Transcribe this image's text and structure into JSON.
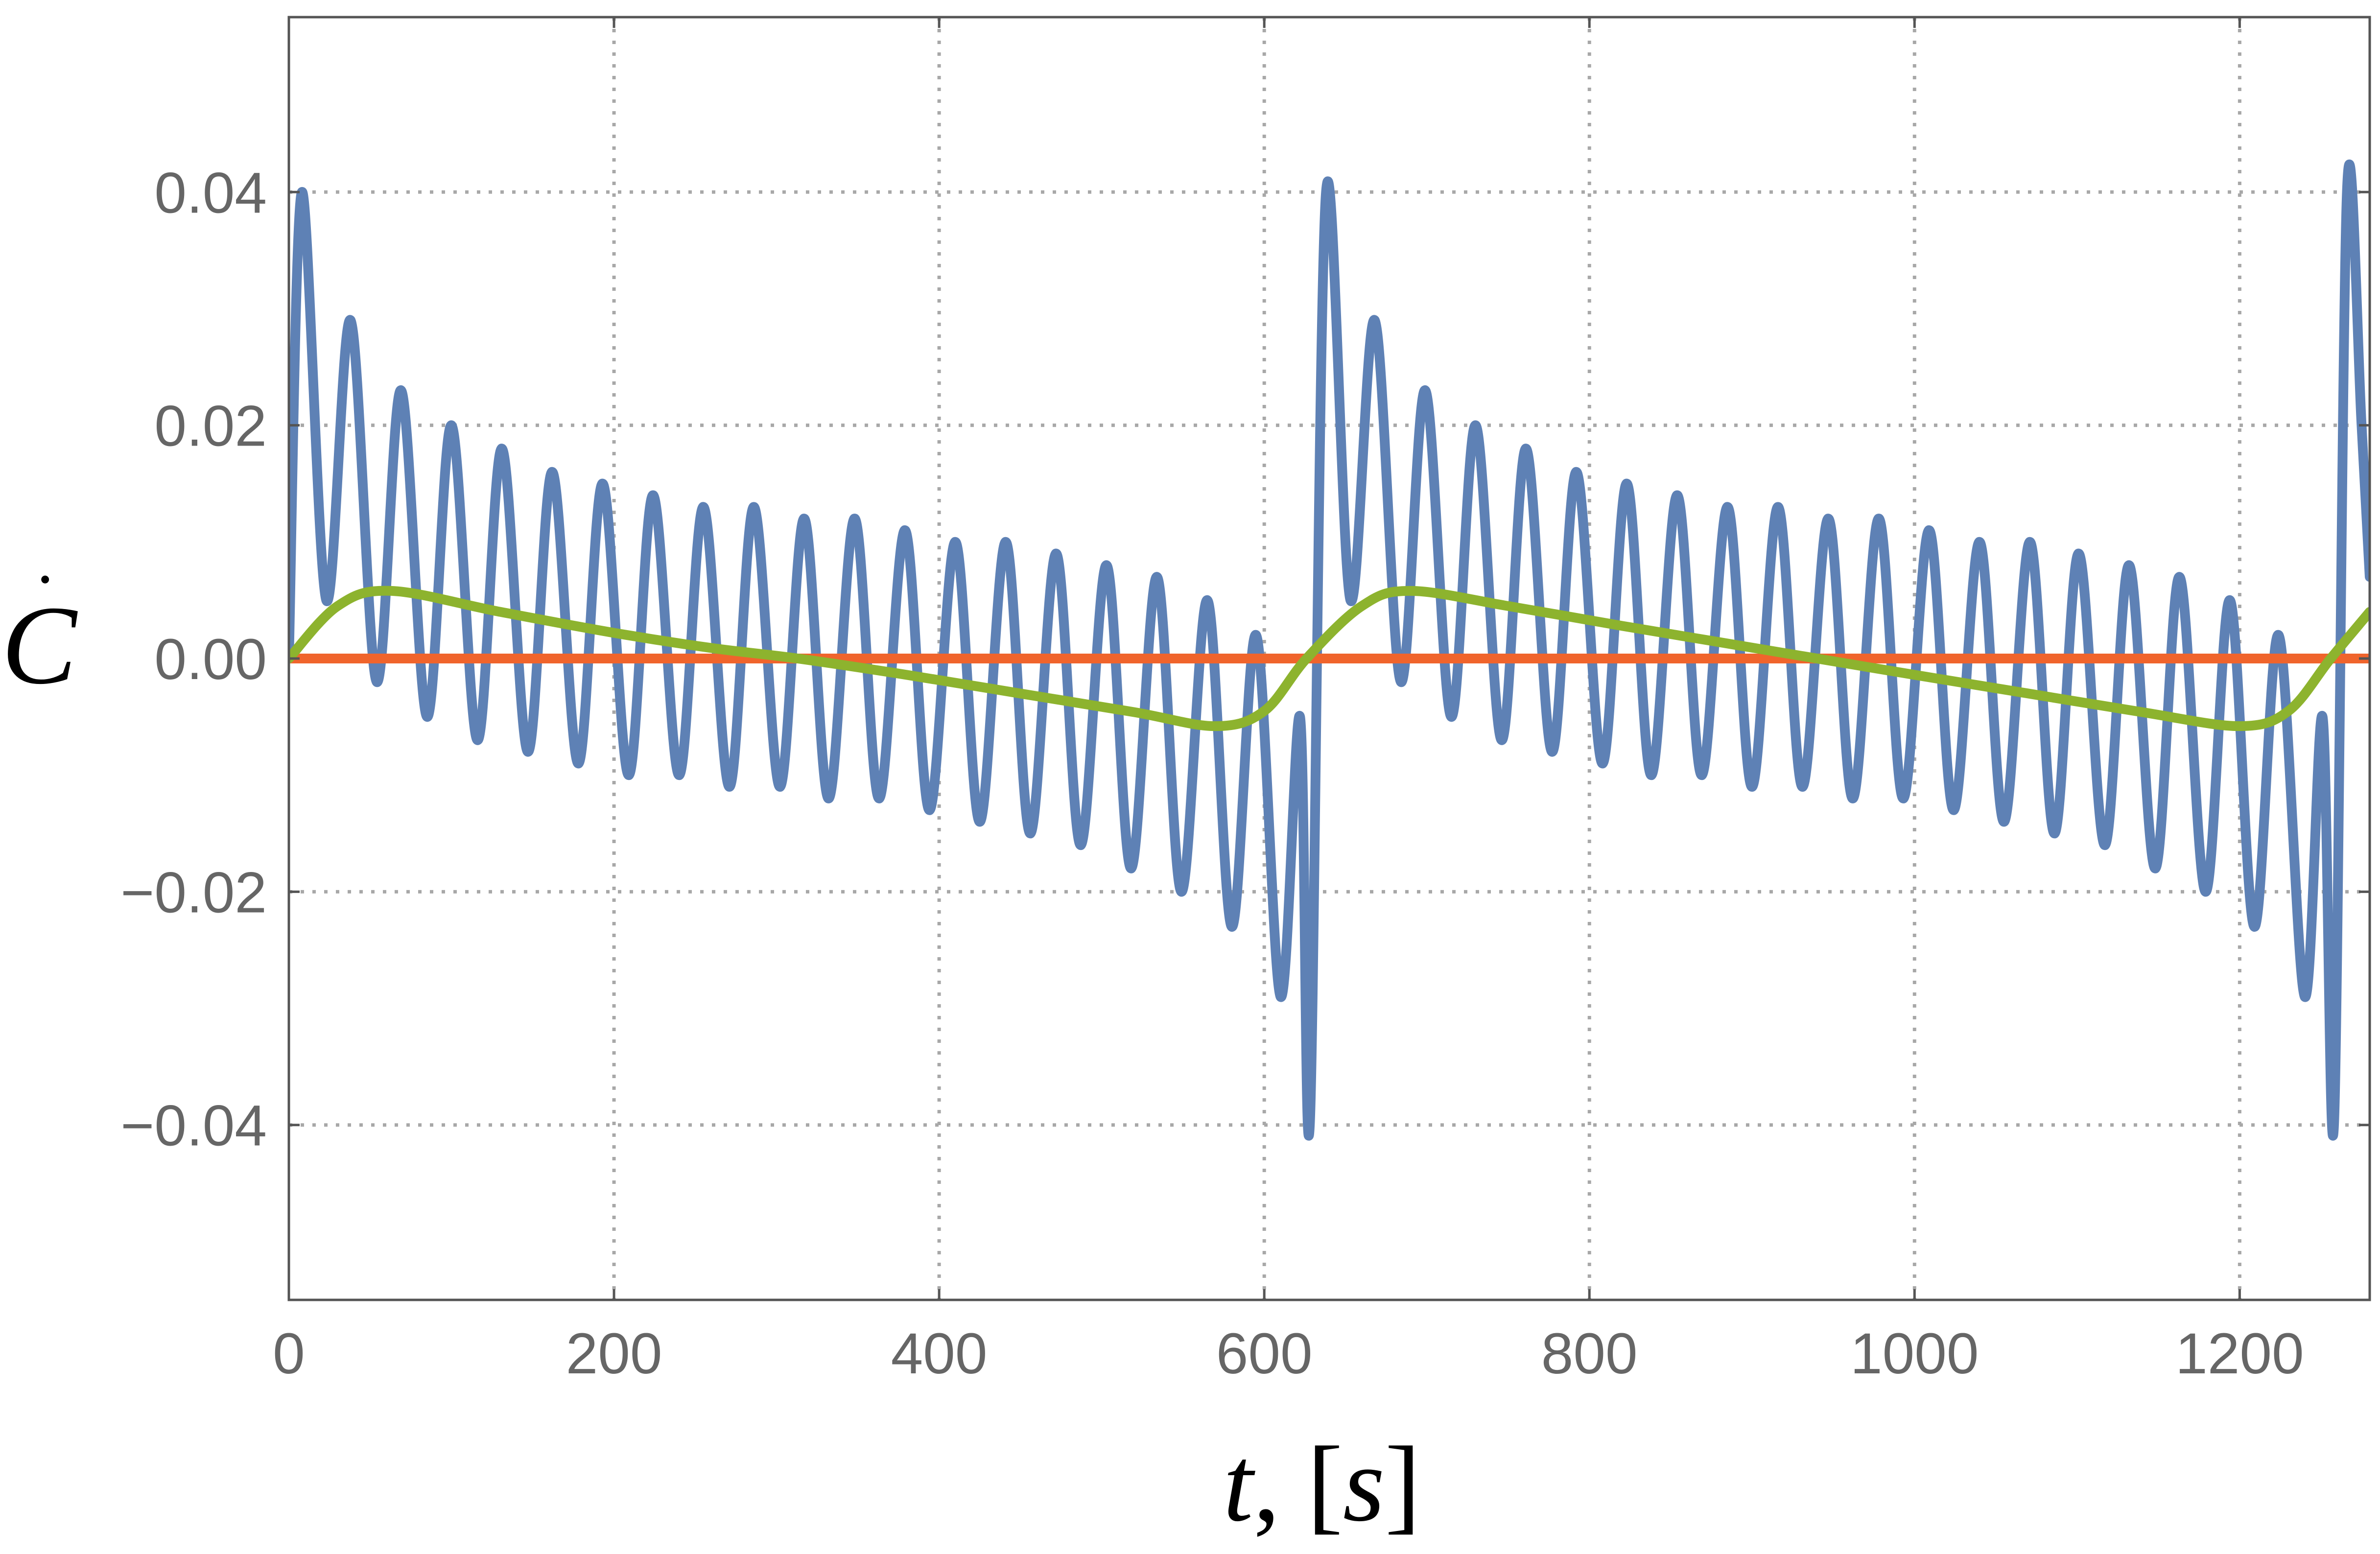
{
  "chart_data": {
    "type": "line",
    "title": "",
    "xlabel": {
      "var": "t",
      "sep": ", ",
      "open": "[",
      "unit": "s",
      "close": "]"
    },
    "ylabel": {
      "symbol": "C",
      "accent": "˙"
    },
    "xlim": [
      0,
      1280
    ],
    "ylim": [
      -0.055,
      0.055
    ],
    "x_ticks": [
      0,
      200,
      400,
      600,
      800,
      1000,
      1200
    ],
    "x_tick_labels": [
      "0",
      "200",
      "400",
      "600",
      "800",
      "1000",
      "1200"
    ],
    "y_ticks": [
      -0.04,
      -0.02,
      0.0,
      0.02,
      0.04
    ],
    "y_tick_labels": [
      "−0.04",
      "−0.02",
      "0.00",
      "0.02",
      "0.04"
    ],
    "grid": true,
    "legend": "none",
    "series": [
      {
        "color": "#5E81B5",
        "x": [
          0,
          8,
          23,
          38,
          54,
          69,
          85,
          100,
          116,
          131,
          147,
          162,
          178,
          193,
          209,
          224,
          240,
          255,
          271,
          286,
          302,
          317,
          332,
          348,
          363,
          379,
          394,
          410,
          425,
          441,
          456,
          472,
          487,
          503,
          518,
          534,
          549,
          565,
          580,
          595,
          610,
          622,
          628,
          638,
          653,
          668,
          684,
          699,
          715,
          730,
          746,
          761,
          777,
          792,
          808,
          823,
          838,
          854,
          869,
          885,
          900,
          916,
          931,
          947,
          962,
          978,
          993,
          1009,
          1024,
          1040,
          1055,
          1071,
          1086,
          1101,
          1117,
          1132,
          1148,
          1163,
          1179,
          1194,
          1209,
          1224,
          1240,
          1251,
          1258,
          1266,
          1275,
          1280
        ],
        "y": [
          0.0,
          0.04,
          0.005,
          0.029,
          -0.002,
          0.023,
          -0.005,
          0.02,
          -0.007,
          0.018,
          -0.008,
          0.016,
          -0.009,
          0.015,
          -0.01,
          0.014,
          -0.01,
          0.013,
          -0.011,
          0.013,
          -0.011,
          0.012,
          -0.012,
          0.012,
          -0.012,
          0.011,
          -0.013,
          0.01,
          -0.014,
          0.01,
          -0.015,
          0.009,
          -0.016,
          0.008,
          -0.018,
          0.007,
          -0.02,
          0.005,
          -0.023,
          0.002,
          -0.029,
          -0.005,
          -0.04,
          0.04,
          0.005,
          0.029,
          -0.002,
          0.023,
          -0.005,
          0.02,
          -0.007,
          0.018,
          -0.008,
          0.016,
          -0.009,
          0.015,
          -0.01,
          0.014,
          -0.01,
          0.013,
          -0.011,
          0.013,
          -0.011,
          0.012,
          -0.012,
          0.012,
          -0.012,
          0.011,
          -0.013,
          0.01,
          -0.014,
          0.01,
          -0.015,
          0.009,
          -0.016,
          0.008,
          -0.018,
          0.007,
          -0.02,
          0.005,
          -0.023,
          0.002,
          -0.029,
          -0.005,
          -0.04,
          0.04,
          0.02,
          0.007
        ]
      },
      {
        "color": "#F0642C",
        "x": [
          0,
          1280
        ],
        "y": [
          0.0,
          0.0
        ]
      },
      {
        "color": "#8DB32E",
        "x": [
          0,
          30,
          63,
          130,
          200,
          260,
          313,
          380,
          450,
          520,
          570,
          600,
          626,
          660,
          690,
          750,
          820,
          880,
          940,
          1000,
          1070,
          1140,
          1200,
          1230,
          1256,
          1280
        ],
        "y": [
          0.0,
          0.0045,
          0.0058,
          0.004,
          0.0022,
          0.0009,
          0.0,
          -0.0014,
          -0.003,
          -0.0046,
          -0.0058,
          -0.0045,
          0.0,
          0.0045,
          0.0058,
          0.0045,
          0.0028,
          0.0014,
          0.0,
          -0.0014,
          -0.003,
          -0.0046,
          -0.0058,
          -0.0045,
          0.0,
          0.004
        ]
      }
    ]
  }
}
